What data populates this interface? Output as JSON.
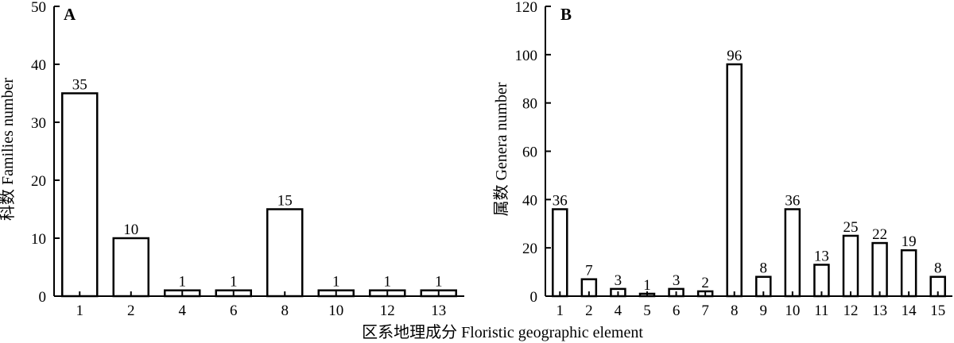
{
  "xlabel": "区系地理成分 Floristic geographic element",
  "chart_data": [
    {
      "type": "bar",
      "panel": "A",
      "ylabel": "科数 Families number",
      "categories": [
        "1",
        "2",
        "4",
        "6",
        "8",
        "10",
        "12",
        "13"
      ],
      "values": [
        35,
        10,
        1,
        1,
        15,
        1,
        1,
        1
      ],
      "ylim": [
        0,
        50
      ],
      "yticks": [
        0,
        10,
        20,
        30,
        40,
        50
      ],
      "grid": false,
      "data_labels": true
    },
    {
      "type": "bar",
      "panel": "B",
      "ylabel": "属数 Genera number",
      "categories": [
        "1",
        "2",
        "4",
        "5",
        "6",
        "7",
        "8",
        "9",
        "10",
        "11",
        "12",
        "13",
        "14",
        "15"
      ],
      "values": [
        36,
        7,
        3,
        1,
        3,
        2,
        96,
        8,
        36,
        13,
        25,
        22,
        19,
        8
      ],
      "ylim": [
        0,
        120
      ],
      "yticks": [
        0,
        20,
        40,
        60,
        80,
        100,
        120
      ],
      "grid": false,
      "data_labels": true
    }
  ]
}
